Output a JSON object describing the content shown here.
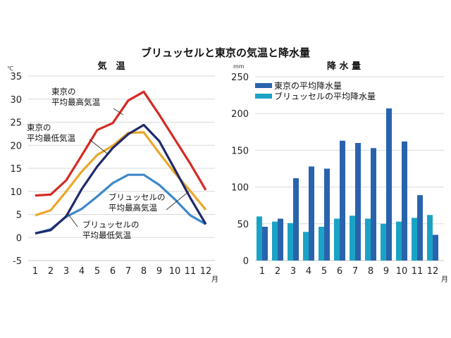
{
  "title": "ブリュッセルと東京の気温と降水量",
  "chart_data": [
    {
      "type": "line",
      "title": "気　温",
      "ylabel": "℃",
      "xlabel": "月",
      "ylim": [
        -5,
        35
      ],
      "yticks": [
        35,
        30,
        25,
        20,
        15,
        10,
        5,
        0,
        -5
      ],
      "grid": true,
      "categories": [
        "1",
        "2",
        "3",
        "4",
        "5",
        "6",
        "7",
        "8",
        "9",
        "10",
        "11",
        "12"
      ],
      "series": [
        {
          "name": "東京の平均最高気温",
          "color": "#d42a22",
          "values": [
            9.1,
            9.3,
            12.4,
            17.8,
            23.3,
            24.8,
            29.7,
            31.6,
            26.6,
            21.3,
            16.0,
            10.3
          ]
        },
        {
          "name": "東京の平均最低気温",
          "color": "#1f2a6b",
          "values": [
            0.9,
            1.6,
            4.6,
            10.5,
            15.4,
            19.4,
            22.4,
            24.4,
            20.9,
            14.8,
            8.6,
            2.9
          ]
        },
        {
          "name": "ブリュッセルの平均最高気温",
          "color": "#e8a82c",
          "values": [
            4.8,
            5.9,
            10.0,
            14.3,
            17.9,
            19.9,
            22.7,
            22.8,
            18.3,
            14.0,
            10.1,
            6.0
          ]
        },
        {
          "name": "ブリュッセルの平均最低気温",
          "color": "#3e88c8",
          "values": [
            0.9,
            1.8,
            4.5,
            6.2,
            8.9,
            11.8,
            13.6,
            13.6,
            11.4,
            8.3,
            4.8,
            2.9
          ]
        }
      ],
      "annotations": [
        {
          "lines": [
            "東京の",
            "平均最高気温"
          ],
          "target": "東京の平均最高気温"
        },
        {
          "lines": [
            "東京の",
            "平均最低気温"
          ],
          "target": "東京の平均最低気温"
        },
        {
          "lines": [
            "ブリュッセルの",
            "平均最高気温"
          ],
          "target": "ブリュッセルの平均最高気温"
        },
        {
          "lines": [
            "ブリュッセルの",
            "平均最低気温"
          ],
          "target": "ブリュッセルの平均最低気温"
        }
      ]
    },
    {
      "type": "bar",
      "title": "降 水 量",
      "ylabel": "mm",
      "xlabel": "月",
      "ylim": [
        0,
        250
      ],
      "yticks": [
        250,
        200,
        150,
        100,
        50,
        0
      ],
      "grid": true,
      "legend": "top-left",
      "categories": [
        "1",
        "2",
        "3",
        "4",
        "5",
        "6",
        "7",
        "8",
        "9",
        "10",
        "11",
        "12"
      ],
      "series": [
        {
          "name": "ブリュッセルの平均降水量",
          "color": "#1ba3c6",
          "values": [
            60,
            53,
            51,
            39,
            46,
            57,
            61,
            57,
            50,
            53,
            58,
            62
          ]
        },
        {
          "name": "東京の平均降水量",
          "color": "#2a63ad",
          "values": [
            46,
            57,
            112,
            128,
            125,
            163,
            160,
            153,
            207,
            162,
            89,
            35
          ]
        }
      ],
      "legend_entries": [
        {
          "label": "東京の平均降水量",
          "color": "#2a63ad"
        },
        {
          "label": "ブリュッセルの平均降水量",
          "color": "#1ba3c6"
        }
      ]
    }
  ]
}
